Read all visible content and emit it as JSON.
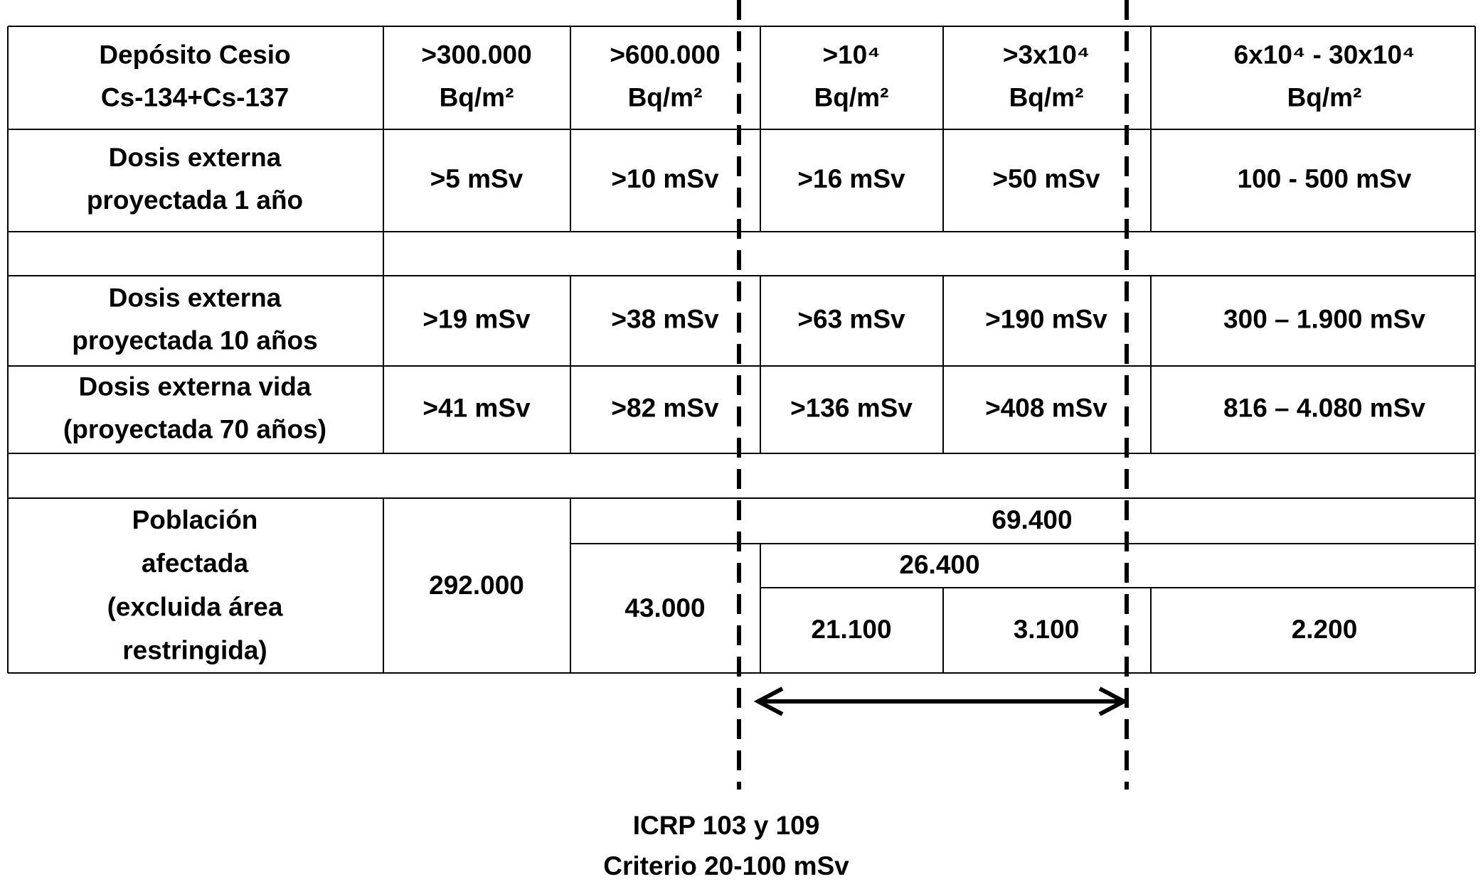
{
  "table": {
    "rows": [
      {
        "label": [
          "Depósito Cesio",
          "Cs-134+Cs-137"
        ],
        "cells": [
          [
            ">300.000",
            "Bq/m²"
          ],
          [
            ">600.000",
            "Bq/m²"
          ],
          [
            ">10⁴",
            "Bq/m²"
          ],
          [
            ">3x10⁴",
            "Bq/m²"
          ],
          [
            "6x10⁴ - 30x10⁴",
            "Bq/m²"
          ]
        ]
      },
      {
        "label": [
          "Dosis externa",
          "proyectada 1 año"
        ],
        "cells": [
          [
            ">5 mSv"
          ],
          [
            ">10  mSv"
          ],
          [
            ">16 mSv"
          ],
          [
            ">50  mSv"
          ],
          [
            "100 - 500  mSv"
          ]
        ]
      },
      {
        "label": [
          "Dosis externa",
          "proyectada 10  años"
        ],
        "cells": [
          [
            ">19 mSv"
          ],
          [
            ">38  mSv"
          ],
          [
            ">63 mSv"
          ],
          [
            ">190  mSv"
          ],
          [
            "300 – 1.900  mSv"
          ]
        ]
      },
      {
        "label": [
          "Dosis externa vida",
          "(proyectada 70  años)"
        ],
        "cells": [
          [
            ">41 mSv"
          ],
          [
            ">82  mSv"
          ],
          [
            ">136 mSv"
          ],
          [
            ">408 mSv"
          ],
          [
            "816 – 4.080  mSv"
          ]
        ]
      }
    ],
    "population": {
      "label": [
        "Población",
        "afectada",
        "(excluida área",
        "restringida)"
      ],
      "col1": "292.000",
      "col2": "43.000",
      "total": "69.400",
      "subtotal": "26.400",
      "split": [
        "21.100",
        "3.100",
        "2.200"
      ]
    }
  },
  "note": [
    "ICRP 103 y 109",
    "Criterio 20-100 mSv"
  ]
}
